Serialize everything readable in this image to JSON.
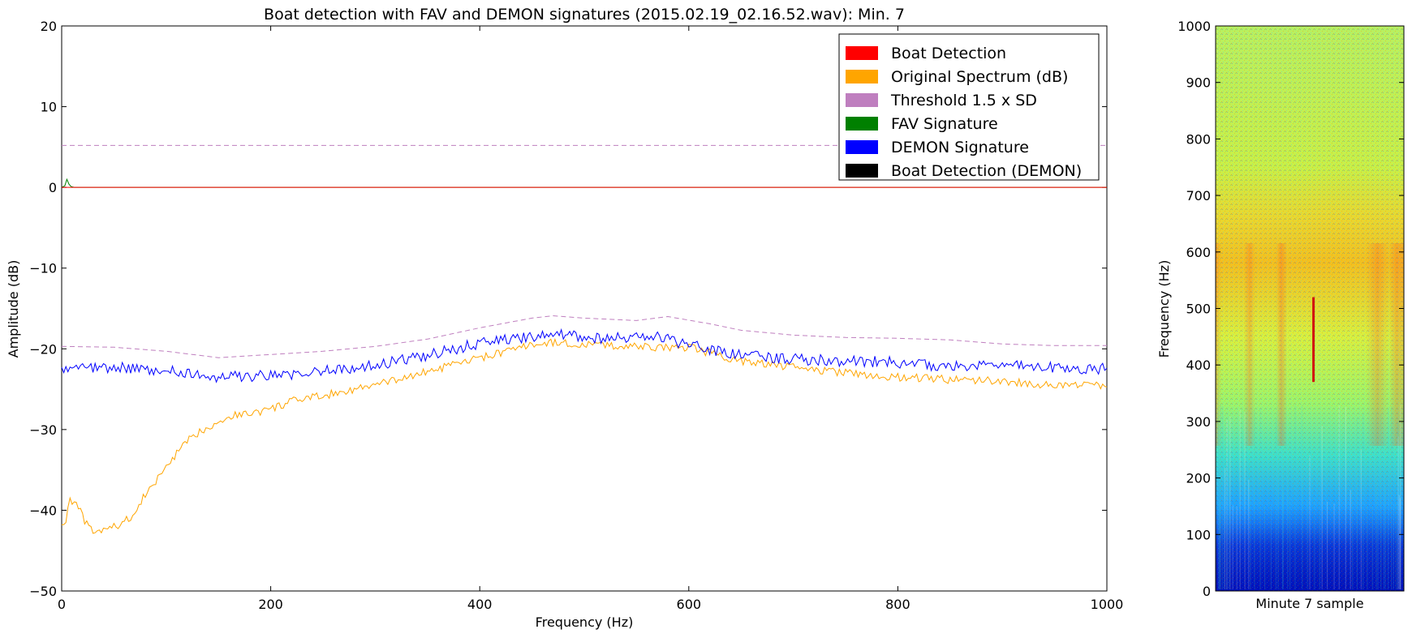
{
  "colors": {
    "boat_detection": "#ff0000",
    "original_spectrum": "#ffa500",
    "threshold": "#bf7fbf",
    "fav_signature": "#008000",
    "demon_signature": "#0000ff",
    "boat_detection_demon": "#000000"
  },
  "chart_data": [
    {
      "type": "line",
      "title": "Boat detection with FAV and DEMON signatures (2015.02.19_02.16.52.wav): Min. 7",
      "xlabel": "Frequency (Hz)",
      "ylabel": "Amplitude (dB)",
      "xlim": [
        0,
        1000
      ],
      "ylim": [
        -50,
        20
      ],
      "xticks": [
        0,
        200,
        400,
        600,
        800,
        1000
      ],
      "xtick_labels": [
        "0",
        "200",
        "400",
        "600",
        "800",
        "1000"
      ],
      "yticks": [
        20,
        10,
        0,
        -10,
        -20,
        -30,
        -40,
        -50
      ],
      "ytick_labels": [
        "20",
        "10",
        "0",
        "−10",
        "−20",
        "−30",
        "−40",
        "−50"
      ],
      "grid": false,
      "legend_position": "top-right",
      "legend": [
        "Boat Detection",
        "Original Spectrum (dB)",
        "Threshold 1.5 x SD",
        "FAV Signature",
        "DEMON Signature",
        "Boat Detection (DEMON)"
      ],
      "series": [
        {
          "name": "Original Spectrum (dB)",
          "style": "solid",
          "x": [
            0,
            3,
            8,
            15,
            25,
            30,
            40,
            55,
            70,
            80,
            90,
            100,
            110,
            120,
            135,
            150,
            165,
            180,
            200,
            220,
            250,
            280,
            300,
            330,
            360,
            390,
            420,
            450,
            470,
            500,
            530,
            560,
            600,
            620,
            650,
            700,
            750,
            800,
            850,
            900,
            950,
            1000
          ],
          "values": [
            -41.5,
            -42,
            -38.5,
            -39.5,
            -42,
            -42.7,
            -42.5,
            -41.8,
            -40.5,
            -38,
            -36.5,
            -34.5,
            -33,
            -31.5,
            -30,
            -29,
            -28.2,
            -28,
            -27.5,
            -26.5,
            -25.8,
            -25,
            -24.5,
            -23.5,
            -22.5,
            -21.5,
            -20.5,
            -19.5,
            -19.2,
            -19.5,
            -19.6,
            -19.8,
            -19.8,
            -20.5,
            -21.5,
            -22.3,
            -23,
            -23.5,
            -23.8,
            -24,
            -24.5,
            -24.5
          ]
        },
        {
          "name": "Threshold 1.5 x SD",
          "style": "dashed",
          "x": [
            0,
            50,
            100,
            150,
            200,
            250,
            300,
            350,
            400,
            450,
            470,
            500,
            550,
            580,
            620,
            650,
            700,
            750,
            800,
            850,
            900,
            950,
            1000
          ],
          "values": [
            -19.7,
            -19.8,
            -20.3,
            -21.1,
            -20.7,
            -20.3,
            -19.7,
            -18.8,
            -17.4,
            -16.2,
            -15.9,
            -16.2,
            -16.5,
            -16.0,
            -16.9,
            -17.7,
            -18.3,
            -18.6,
            -18.7,
            -18.9,
            -19.4,
            -19.6,
            -19.6
          ]
        },
        {
          "name": "Threshold 1.5 x SD",
          "style": "dashed",
          "x": [
            0,
            1000
          ],
          "values": [
            5.2,
            5.2
          ]
        },
        {
          "name": "DEMON Signature",
          "style": "solid",
          "x": [
            0,
            50,
            100,
            150,
            200,
            250,
            300,
            350,
            400,
            450,
            480,
            520,
            560,
            600,
            650,
            700,
            750,
            800,
            850,
            900,
            950,
            1000
          ],
          "values": [
            -22.5,
            -22.3,
            -22.7,
            -23.5,
            -23.3,
            -22.8,
            -22.0,
            -20.8,
            -19.3,
            -18.5,
            -18.2,
            -18.8,
            -18.3,
            -19.5,
            -20.8,
            -21.3,
            -21.5,
            -21.7,
            -22.2,
            -22.0,
            -22.3,
            -22.5
          ]
        },
        {
          "name": "FAV Signature",
          "style": "solid",
          "x": [
            0,
            3,
            5,
            7,
            9,
            12,
            1000
          ],
          "values": [
            0,
            0.2,
            1.0,
            0.4,
            0.1,
            0,
            0
          ]
        },
        {
          "name": "Boat Detection",
          "style": "solid",
          "x": [
            0,
            1000
          ],
          "values": [
            0,
            0
          ]
        }
      ]
    },
    {
      "type": "heatmap",
      "xlabel": "Minute 7 sample",
      "ylabel": "Frequency (Hz)",
      "ylim": [
        0,
        1000
      ],
      "yticks": [
        0,
        100,
        200,
        300,
        400,
        500,
        600,
        700,
        800,
        900,
        1000
      ],
      "ytick_labels": [
        "0",
        "100",
        "200",
        "300",
        "400",
        "500",
        "600",
        "700",
        "800",
        "900",
        "1000"
      ],
      "colormap": "jet",
      "annotations": [
        {
          "label": "vertical streak",
          "x_fraction": 0.52,
          "freq_range": [
            370,
            520
          ]
        }
      ]
    }
  ]
}
